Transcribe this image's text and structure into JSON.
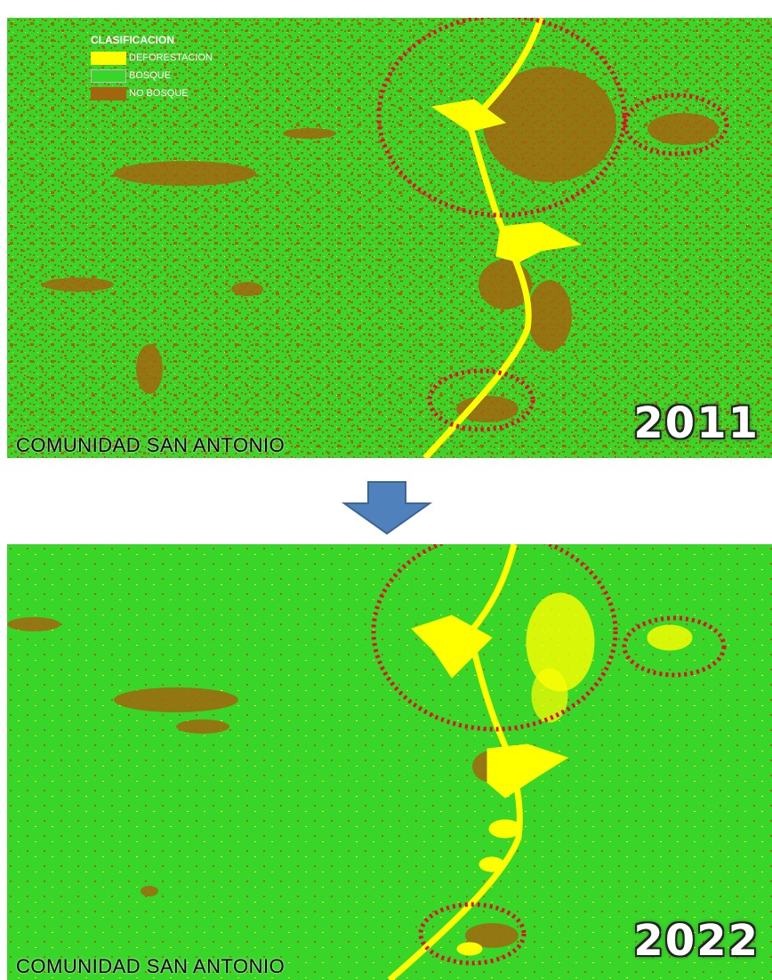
{
  "legend": {
    "title": "CLASIFICACION",
    "items": [
      {
        "label": "DEFORESTACION",
        "color": "#ffff00"
      },
      {
        "label": "BOSQUE",
        "color": "#39d62a"
      },
      {
        "label": "NO BOSQUE",
        "color": "#a2660e"
      }
    ]
  },
  "maps": [
    {
      "year": "2011",
      "community": "COMUNIDAD SAN ANTONIO"
    },
    {
      "year": "2022",
      "community": "COMUNIDAD SAN ANTONIO"
    }
  ],
  "colors": {
    "forest": "#39d62a",
    "non_forest": "#a2660e",
    "deforestation": "#ffff00",
    "highlight_circle": "#e01020",
    "arrow": "#4f81bd"
  },
  "icons": [
    "down-arrow-icon"
  ]
}
